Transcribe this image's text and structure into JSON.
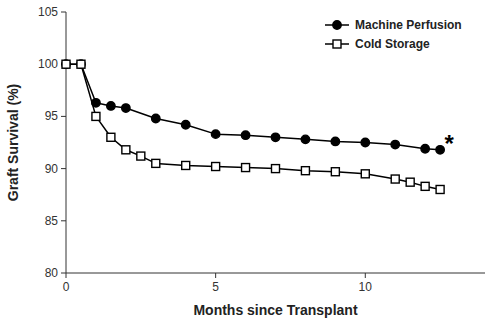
{
  "chart_data": {
    "type": "line",
    "x_label": "Months since Transplant",
    "y_label": "Graft Survival (%)",
    "xlim": [
      0,
      14
    ],
    "xticks": [
      0,
      5,
      10
    ],
    "ylim": [
      80,
      105
    ],
    "yticks": [
      80,
      85,
      90,
      95,
      100,
      105
    ],
    "grid": false,
    "legend": "upper right",
    "series": [
      {
        "name": "Machine Perfusion",
        "color": "#000000",
        "marker": "circle",
        "x": [
          0,
          0.5,
          1,
          1.5,
          2,
          3,
          4,
          5,
          6,
          7,
          8,
          9,
          10,
          11,
          12,
          12.5
        ],
        "values": [
          100,
          100,
          96.3,
          96.0,
          95.8,
          94.8,
          94.2,
          93.3,
          93.2,
          93.0,
          92.8,
          92.6,
          92.5,
          92.3,
          91.9,
          91.8
        ]
      },
      {
        "name": "Cold Storage",
        "color": "#000000",
        "marker": "square",
        "x": [
          0,
          0.5,
          1,
          1.5,
          2,
          2.5,
          3,
          4,
          5,
          6,
          7,
          8,
          9,
          10,
          11,
          11.5,
          12,
          12.5
        ],
        "values": [
          100,
          100,
          95.0,
          93.0,
          91.8,
          91.2,
          90.5,
          90.3,
          90.2,
          90.1,
          90.0,
          89.8,
          89.7,
          89.5,
          89.0,
          88.7,
          88.3,
          88.0
        ]
      }
    ],
    "annotations": [
      {
        "text": "*",
        "x": 12.8,
        "y": 92.5
      }
    ]
  }
}
